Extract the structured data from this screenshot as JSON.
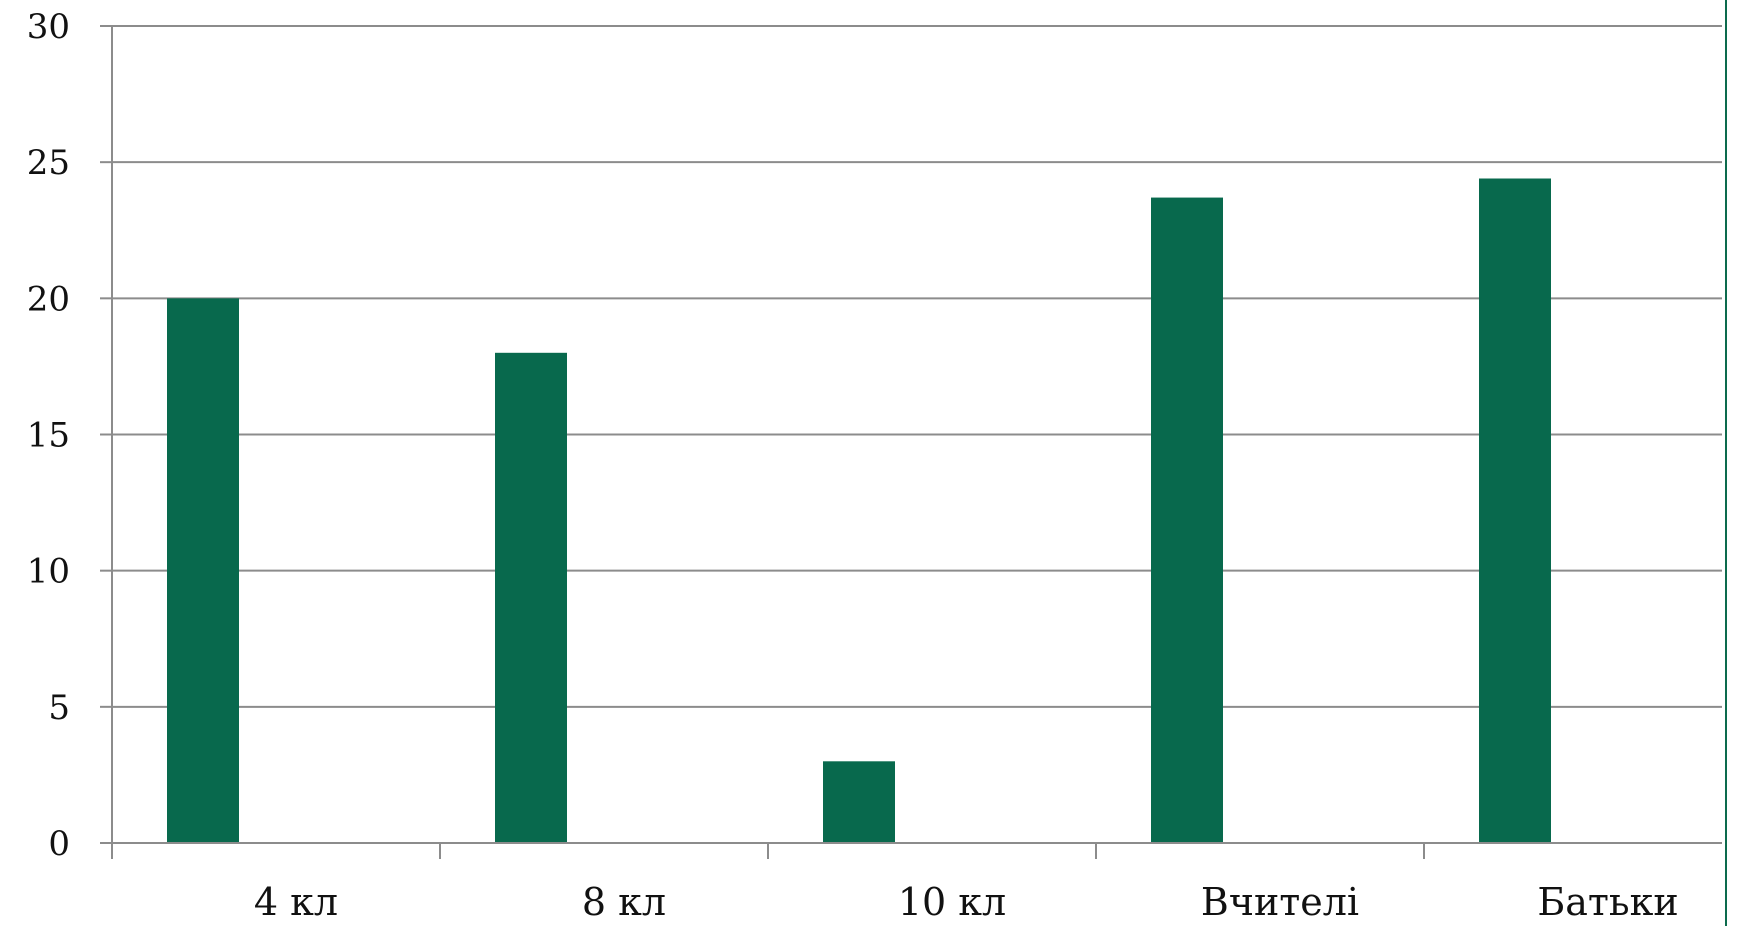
{
  "chart_data": {
    "type": "bar",
    "categories": [
      "4 кл",
      "8 кл",
      "10 кл",
      "Вчителі",
      "Батьки"
    ],
    "series": [
      {
        "values": [
          20,
          18,
          3,
          23.7,
          24.4
        ]
      }
    ],
    "yticks": [
      "0",
      "5",
      "10",
      "15",
      "20",
      "25",
      "30"
    ],
    "ylim": [
      0,
      30
    ],
    "grid": true,
    "legend": "none",
    "colors": {
      "bar": "#08694d",
      "grid": "#8c8c8c",
      "axis": "#8c8c8c",
      "frame": "#0c6b4d"
    }
  }
}
